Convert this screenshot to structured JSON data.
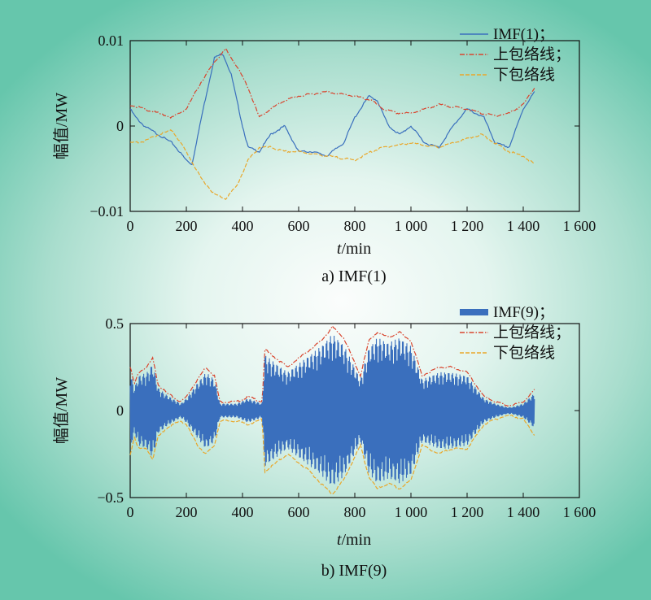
{
  "colors": {
    "imf": "#3a6fbd",
    "upper": "#d9452e",
    "lower": "#e9a72a"
  },
  "chart_data": [
    {
      "type": "line",
      "caption": "a) IMF(1)",
      "xlabel_italic": "t",
      "xlabel_rest": "/min",
      "ylabel": "幅值/MW",
      "xlim": [
        0,
        1600
      ],
      "ylim": [
        -0.01,
        0.01
      ],
      "x_ticks": [
        0,
        200,
        400,
        600,
        800,
        1000,
        1200,
        1400,
        1600
      ],
      "x_tick_labels": [
        "0",
        "200",
        "400",
        "600",
        "800",
        "1 000",
        "1 200",
        "1 400",
        "1 600"
      ],
      "y_ticks": [
        0.01,
        0,
        -0.01
      ],
      "y_tick_labels": [
        "0.01",
        "0",
        "−0.01"
      ],
      "legend": [
        "IMF(1)；",
        "上包络线；",
        "下包络线"
      ],
      "series": [
        {
          "name": "IMF(1)",
          "style": "solid",
          "x": [
            0,
            20,
            50,
            100,
            150,
            200,
            220,
            260,
            300,
            330,
            360,
            400,
            420,
            460,
            500,
            550,
            600,
            650,
            700,
            760,
            800,
            850,
            880,
            920,
            960,
            1000,
            1050,
            1100,
            1150,
            1200,
            1260,
            1300,
            1350,
            1400,
            1440
          ],
          "y": [
            0.002,
            0.001,
            0.0,
            -0.001,
            -0.002,
            -0.004,
            -0.0045,
            0.002,
            0.008,
            0.0085,
            0.006,
            0.0,
            -0.0025,
            -0.003,
            -0.001,
            0.0,
            -0.003,
            -0.003,
            -0.0035,
            -0.002,
            0.001,
            0.0035,
            0.003,
            0.0,
            -0.001,
            0.0,
            -0.002,
            -0.0025,
            0.0,
            0.002,
            0.001,
            -0.002,
            -0.0025,
            0.002,
            0.004
          ]
        },
        {
          "name": "上包络线",
          "style": "dashdot",
          "x": [
            0,
            50,
            100,
            150,
            200,
            250,
            300,
            340,
            380,
            420,
            460,
            500,
            550,
            600,
            700,
            800,
            860,
            900,
            950,
            1000,
            1050,
            1100,
            1200,
            1250,
            1300,
            1350,
            1400,
            1440
          ],
          "y": [
            0.0025,
            0.002,
            0.0015,
            0.001,
            0.002,
            0.005,
            0.0075,
            0.009,
            0.007,
            0.0045,
            0.001,
            0.002,
            0.003,
            0.0035,
            0.004,
            0.0035,
            0.003,
            0.002,
            0.0015,
            0.0015,
            0.002,
            0.0025,
            0.002,
            0.0015,
            0.0012,
            0.0015,
            0.0025,
            0.0045
          ]
        },
        {
          "name": "下包络线",
          "style": "dashed",
          "x": [
            0,
            50,
            100,
            150,
            200,
            250,
            300,
            340,
            380,
            420,
            460,
            500,
            550,
            600,
            700,
            800,
            860,
            900,
            1000,
            1100,
            1150,
            1200,
            1250,
            1300,
            1350,
            1400,
            1440
          ],
          "y": [
            -0.002,
            -0.0018,
            -0.001,
            -0.0005,
            -0.003,
            -0.006,
            -0.008,
            -0.0085,
            -0.007,
            -0.004,
            -0.0025,
            -0.0025,
            -0.003,
            -0.003,
            -0.0035,
            -0.004,
            -0.003,
            -0.0025,
            -0.002,
            -0.0025,
            -0.002,
            -0.0015,
            -0.001,
            -0.002,
            -0.003,
            -0.0035,
            -0.0045
          ]
        }
      ]
    },
    {
      "type": "line",
      "caption": "b) IMF(9)",
      "xlabel_italic": "t",
      "xlabel_rest": "/min",
      "ylabel": "幅值/MW",
      "xlim": [
        0,
        1600
      ],
      "ylim": [
        -0.5,
        0.5
      ],
      "x_ticks": [
        0,
        200,
        400,
        600,
        800,
        1000,
        1200,
        1400,
        1600
      ],
      "x_tick_labels": [
        "0",
        "200",
        "400",
        "600",
        "800",
        "1 000",
        "1 200",
        "1 400",
        "1 600"
      ],
      "y_ticks": [
        0.5,
        0,
        -0.5
      ],
      "y_tick_labels": [
        "0.5",
        "0",
        "−0.5"
      ],
      "legend": [
        "IMF(9)；",
        "上包络线；",
        "下包络线"
      ],
      "series": [
        {
          "name": "上包络线",
          "style": "dashdot",
          "x": [
            0,
            15,
            30,
            60,
            80,
            100,
            130,
            180,
            200,
            240,
            270,
            300,
            320,
            380,
            420,
            470,
            480,
            520,
            560,
            600,
            640,
            680,
            720,
            760,
            820,
            850,
            880,
            920,
            960,
            1000,
            1040,
            1100,
            1140,
            1200,
            1260,
            1300,
            1340,
            1360,
            1400,
            1440
          ],
          "y": [
            0.25,
            0.15,
            0.22,
            0.25,
            0.3,
            0.15,
            0.1,
            0.05,
            0.08,
            0.18,
            0.25,
            0.2,
            0.05,
            0.05,
            0.08,
            0.05,
            0.35,
            0.3,
            0.25,
            0.3,
            0.35,
            0.4,
            0.48,
            0.42,
            0.2,
            0.4,
            0.45,
            0.42,
            0.45,
            0.4,
            0.2,
            0.25,
            0.25,
            0.22,
            0.08,
            0.05,
            0.03,
            0.03,
            0.05,
            0.12
          ]
        },
        {
          "name": "下包络线",
          "style": "dashed",
          "x": [
            0,
            15,
            30,
            60,
            80,
            100,
            130,
            180,
            200,
            240,
            270,
            300,
            320,
            380,
            420,
            470,
            480,
            520,
            560,
            600,
            640,
            680,
            720,
            760,
            820,
            850,
            880,
            920,
            960,
            1000,
            1040,
            1100,
            1140,
            1200,
            1260,
            1300,
            1340,
            1360,
            1400,
            1440
          ],
          "y": [
            -0.25,
            -0.15,
            -0.22,
            -0.22,
            -0.28,
            -0.15,
            -0.1,
            -0.06,
            -0.08,
            -0.2,
            -0.25,
            -0.2,
            -0.06,
            -0.06,
            -0.08,
            -0.05,
            -0.35,
            -0.3,
            -0.25,
            -0.3,
            -0.35,
            -0.42,
            -0.48,
            -0.4,
            -0.2,
            -0.38,
            -0.45,
            -0.42,
            -0.45,
            -0.4,
            -0.2,
            -0.25,
            -0.22,
            -0.22,
            -0.08,
            -0.05,
            -0.03,
            -0.03,
            -0.05,
            -0.14
          ]
        },
        {
          "name": "IMF(9)",
          "style": "oscillation",
          "envelope_x": [
            0,
            15,
            30,
            60,
            80,
            100,
            130,
            180,
            200,
            240,
            270,
            300,
            320,
            380,
            420,
            470,
            480,
            520,
            560,
            600,
            640,
            680,
            720,
            760,
            820,
            850,
            880,
            920,
            960,
            1000,
            1040,
            1100,
            1140,
            1200,
            1260,
            1300,
            1340,
            1360,
            1400,
            1440
          ],
          "envelope_y": [
            0.22,
            0.13,
            0.2,
            0.22,
            0.27,
            0.13,
            0.09,
            0.04,
            0.07,
            0.16,
            0.22,
            0.18,
            0.04,
            0.04,
            0.07,
            0.04,
            0.32,
            0.27,
            0.22,
            0.27,
            0.32,
            0.37,
            0.44,
            0.38,
            0.18,
            0.36,
            0.42,
            0.39,
            0.42,
            0.37,
            0.18,
            0.22,
            0.22,
            0.2,
            0.07,
            0.04,
            0.02,
            0.02,
            0.04,
            0.1
          ]
        }
      ]
    }
  ]
}
